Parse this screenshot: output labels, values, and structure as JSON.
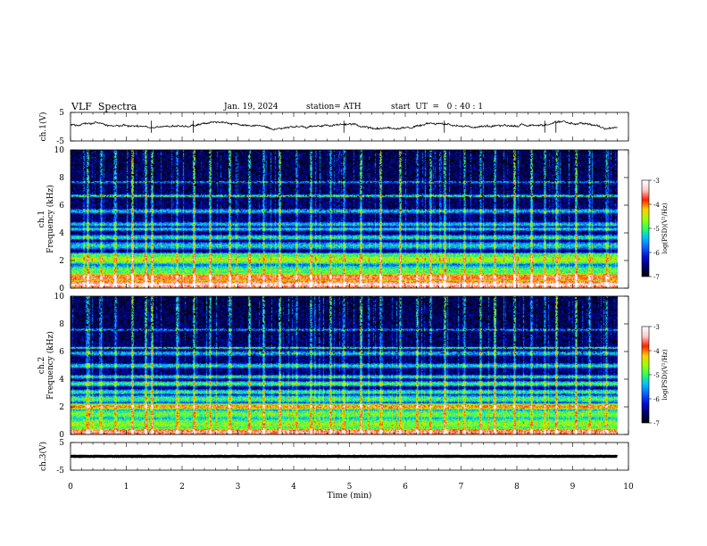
{
  "header": {
    "title": "VLF  Spectra",
    "date": "Jan. 19, 2024",
    "station": "station= ATH",
    "start": "start  UT  =   0 : 40 : 1"
  },
  "colors": {
    "cmap": [
      "#000000",
      "#000070",
      "#0010d0",
      "#1060ff",
      "#00c0ff",
      "#30ff60",
      "#a0ff00",
      "#ffd000",
      "#ff2000",
      "#ffc8c8",
      "#ffffff"
    ],
    "trace": "#000000"
  },
  "chart_data": [
    {
      "type": "line",
      "name": "ch1-voltage",
      "ylabel": "ch.1(V)",
      "ylim": [
        -5,
        5
      ],
      "yticks": [
        "5",
        "-5"
      ],
      "xlim": [
        0,
        10
      ],
      "trace_span_min": [
        0,
        9.8
      ],
      "baseline": 0.5,
      "noise_amplitude": 0.8,
      "spikes_min": [
        1.45,
        2.2,
        4.9,
        6.7,
        8.5,
        8.7
      ]
    },
    {
      "type": "heatmap",
      "name": "ch1-spectrogram",
      "ylabel": "ch.1\nFrequency  (kHz)",
      "ylim": [
        0,
        10
      ],
      "yticks": [
        "0",
        "2",
        "4",
        "6",
        "8",
        "10"
      ],
      "xlim": [
        0,
        10
      ],
      "data_span_min": [
        0,
        9.8
      ],
      "colorbar": {
        "label": "log(PSD)(V²/Hz)",
        "range": [
          -7,
          -3
        ],
        "ticks": [
          "-3",
          "-4",
          "-5",
          "-6",
          "-7"
        ]
      },
      "bands_khz": [
        {
          "f": 0.3,
          "w": 0.25,
          "level": -3.2
        },
        {
          "f": 0.8,
          "w": 0.3,
          "level": -3.7
        },
        {
          "f": 1.3,
          "w": 0.45,
          "level": -4.9
        },
        {
          "f": 2.1,
          "w": 0.35,
          "level": -4.5
        },
        {
          "f": 2.45,
          "w": 0.15,
          "level": -4.9
        },
        {
          "f": 3.1,
          "w": 0.3,
          "level": -5.3
        },
        {
          "f": 3.7,
          "w": 0.2,
          "level": -5.2
        },
        {
          "f": 4.3,
          "w": 0.15,
          "level": -5.3
        },
        {
          "f": 4.65,
          "w": 0.2,
          "level": -5.4
        },
        {
          "f": 5.6,
          "w": 0.2,
          "level": -5.4
        },
        {
          "f": 6.7,
          "w": 0.1,
          "level": -5.0
        },
        {
          "f": 7.7,
          "w": 0.12,
          "level": -5.6
        }
      ],
      "sferic_times_min": [
        0.3,
        0.55,
        0.8,
        1.1,
        1.35,
        1.45,
        1.9,
        2.2,
        2.5,
        2.85,
        3.2,
        3.45,
        3.75,
        4.05,
        4.3,
        4.65,
        4.9,
        5.2,
        5.55,
        5.9,
        6.2,
        6.45,
        6.7,
        7.05,
        7.35,
        7.6,
        7.95,
        8.25,
        8.5,
        8.7,
        9.05,
        9.3,
        9.6
      ]
    },
    {
      "type": "heatmap",
      "name": "ch2-spectrogram",
      "ylabel": "ch.2\nFrequency  (kHz)",
      "ylim": [
        0,
        10
      ],
      "yticks": [
        "0",
        "2",
        "4",
        "6",
        "8",
        "10"
      ],
      "xlim": [
        0,
        10
      ],
      "data_span_min": [
        0,
        9.8
      ],
      "colorbar": {
        "label": "log(PSD)(V²/Hz)",
        "range": [
          -7,
          -3
        ],
        "ticks": [
          "-3",
          "-4",
          "-5",
          "-6",
          "-7"
        ]
      },
      "bands_khz": [
        {
          "f": 0.2,
          "w": 0.25,
          "level": -3.5
        },
        {
          "f": 0.8,
          "w": 0.5,
          "level": -4.7
        },
        {
          "f": 1.5,
          "w": 0.4,
          "level": -4.8
        },
        {
          "f": 2.05,
          "w": 0.2,
          "level": -3.9
        },
        {
          "f": 2.6,
          "w": 0.3,
          "level": -5.0
        },
        {
          "f": 3.1,
          "w": 0.2,
          "level": -5.1
        },
        {
          "f": 3.7,
          "w": 0.2,
          "level": -5.0
        },
        {
          "f": 4.2,
          "w": 0.15,
          "level": -5.2
        },
        {
          "f": 5.0,
          "w": 0.2,
          "level": -5.3
        },
        {
          "f": 5.9,
          "w": 0.2,
          "level": -5.4
        },
        {
          "f": 6.3,
          "w": 0.08,
          "level": -5.0
        },
        {
          "f": 7.6,
          "w": 0.12,
          "level": -5.6
        }
      ],
      "sferic_times_min": [
        0.3,
        0.55,
        0.8,
        1.1,
        1.35,
        1.45,
        1.9,
        2.2,
        2.5,
        2.85,
        3.2,
        3.45,
        3.75,
        4.05,
        4.3,
        4.65,
        4.9,
        5.2,
        5.55,
        5.9,
        6.2,
        6.45,
        6.7,
        7.05,
        7.35,
        7.6,
        7.95,
        8.25,
        8.5,
        8.7,
        9.05,
        9.3,
        9.6
      ]
    },
    {
      "type": "line",
      "name": "ch3-voltage",
      "ylabel": "ch.3(V)",
      "ylim": [
        -5,
        5
      ],
      "yticks": [
        "5",
        "-5"
      ],
      "xlim": [
        0,
        10
      ],
      "trace_span_min": [
        0,
        9.8
      ],
      "baseline": 0,
      "noise_amplitude": 0.15
    }
  ],
  "xaxis": {
    "label": "Time  (min)",
    "ticks": [
      "0",
      "1",
      "2",
      "3",
      "4",
      "5",
      "6",
      "7",
      "8",
      "9",
      "10"
    ]
  }
}
